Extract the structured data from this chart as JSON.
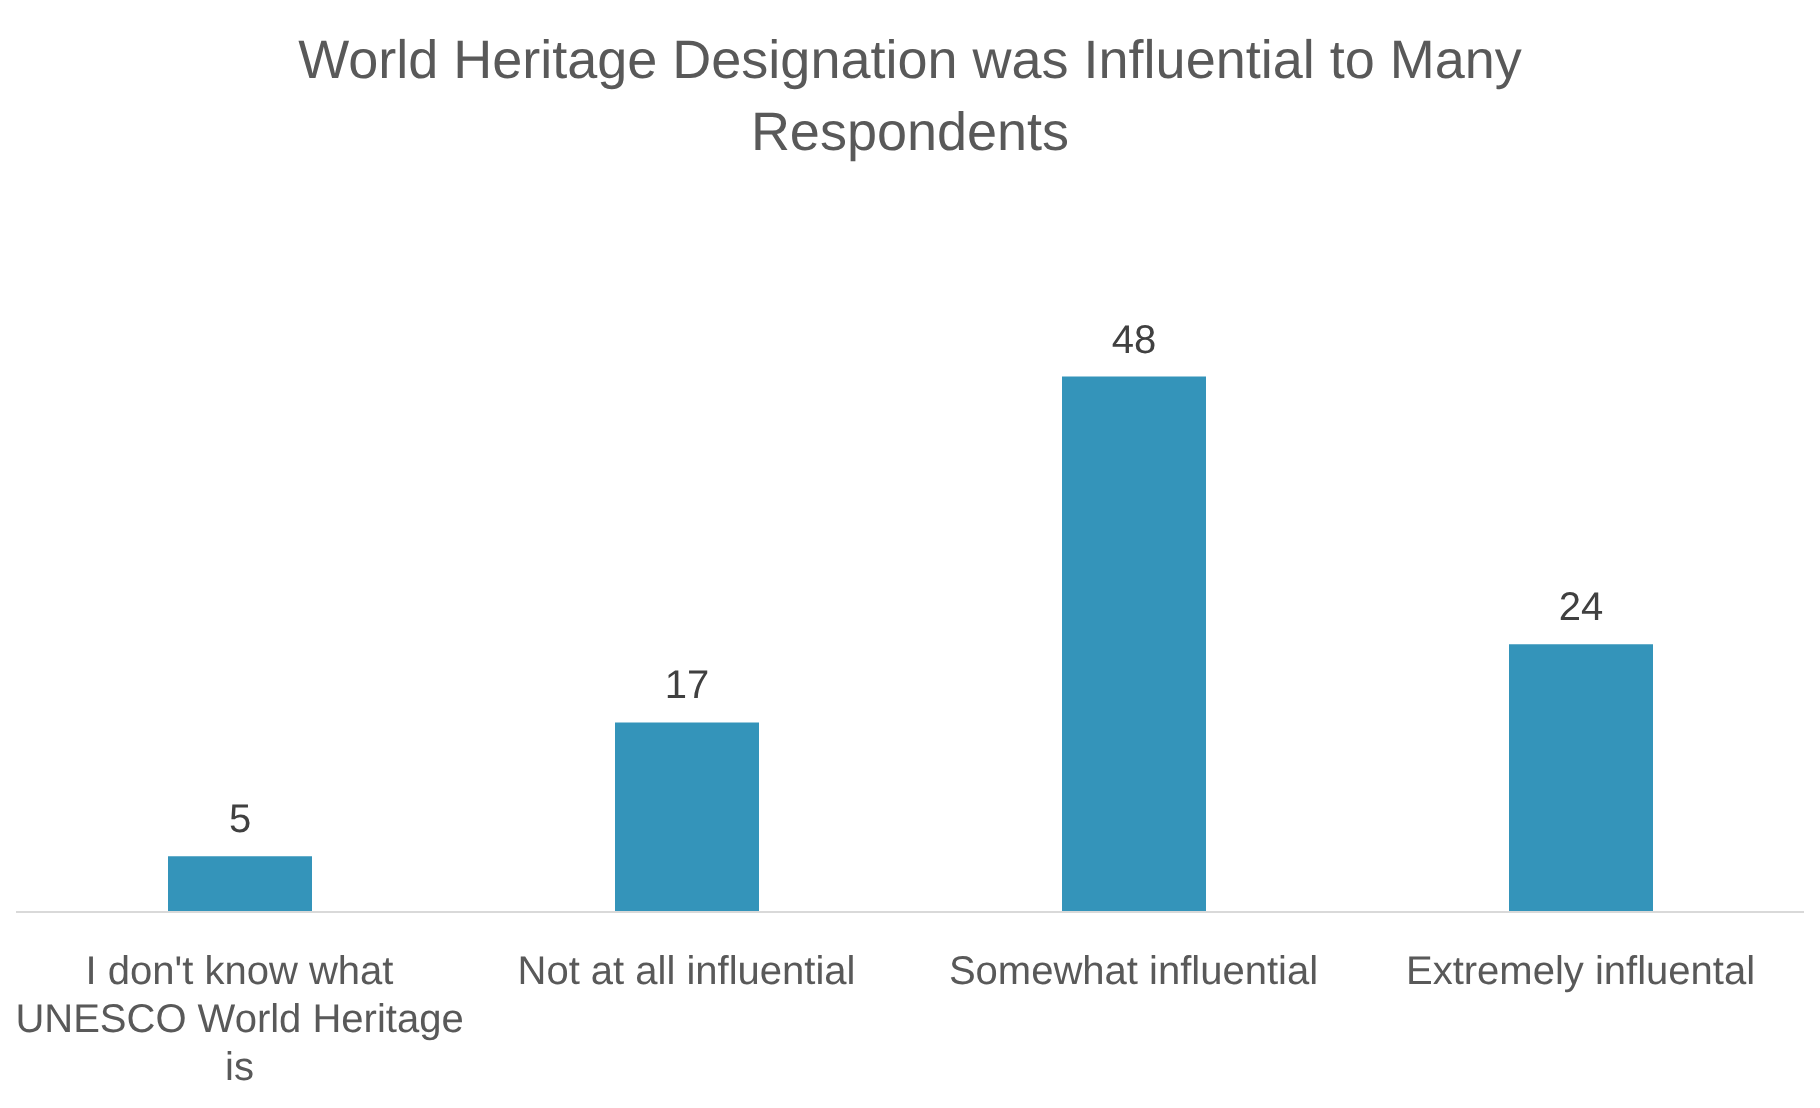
{
  "chart_data": {
    "type": "bar",
    "title": "World Heritage Designation was Influential to Many Respondents",
    "categories": [
      "I don't know what UNESCO World Heritage is",
      "Not at all influential",
      "Somewhat influential",
      "Extremely influental"
    ],
    "values": [
      5,
      17,
      48,
      24
    ],
    "color": "#3494ba",
    "tick_labels": "x",
    "data_labels": true,
    "grid": false,
    "legend": false
  }
}
